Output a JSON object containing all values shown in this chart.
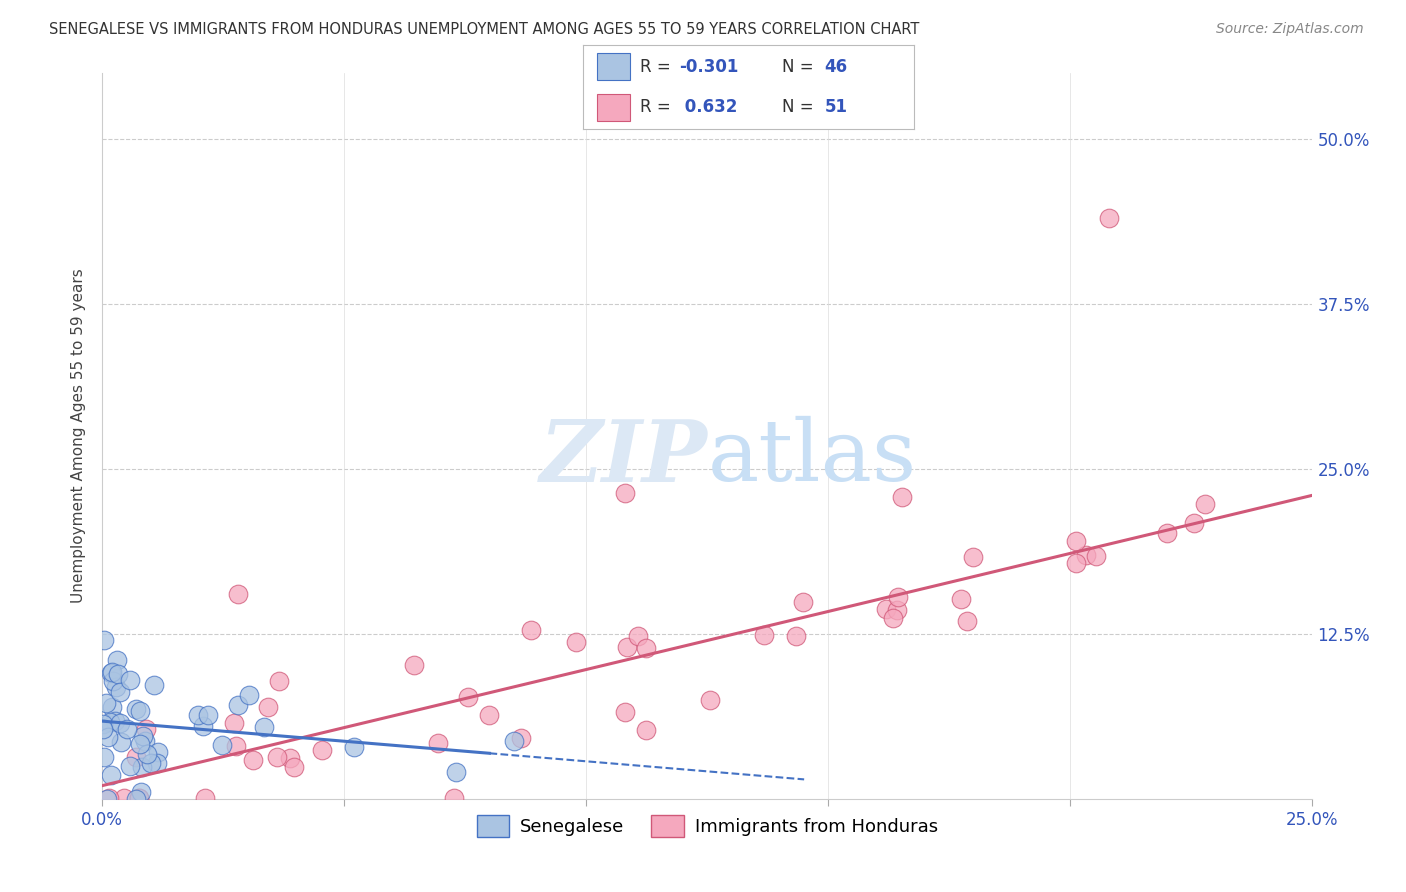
{
  "title": "SENEGALESE VS IMMIGRANTS FROM HONDURAS UNEMPLOYMENT AMONG AGES 55 TO 59 YEARS CORRELATION CHART",
  "source": "Source: ZipAtlas.com",
  "ylabel": "Unemployment Among Ages 55 to 59 years",
  "ytick_labels": [
    "50.0%",
    "37.5%",
    "25.0%",
    "12.5%"
  ],
  "ytick_values": [
    0.5,
    0.375,
    0.25,
    0.125
  ],
  "xlim": [
    0.0,
    0.25
  ],
  "ylim": [
    0.0,
    0.55
  ],
  "legend_label1": "Senegalese",
  "legend_label2": "Immigrants from Honduras",
  "r1": "-0.301",
  "n1": "46",
  "r2": "0.632",
  "n2": "51",
  "color_blue": "#aac4e2",
  "color_pink": "#f5a8be",
  "line_blue": "#4472c4",
  "line_pink": "#d05878",
  "watermark_color": "#dce8f5",
  "background_color": "#ffffff",
  "title_fontsize": 10.5,
  "source_fontsize": 10,
  "tick_fontsize": 12,
  "legend_fontsize": 13
}
